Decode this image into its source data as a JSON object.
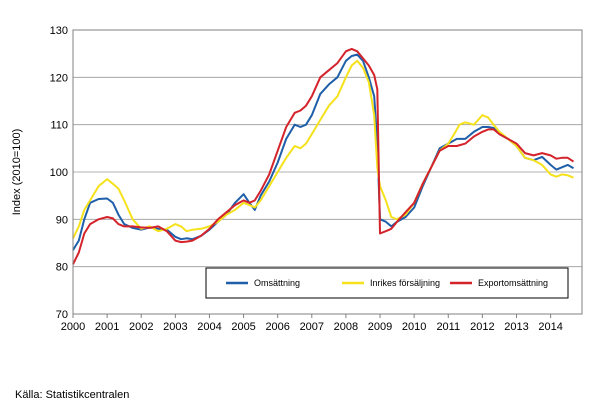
{
  "source_label": "Källa: Statistikcentralen",
  "chart_data": {
    "type": "line",
    "ylabel": "Index (2010=100)",
    "xlabel": "",
    "ylim": [
      70,
      130
    ],
    "yticks": [
      70,
      80,
      90,
      100,
      110,
      120,
      130
    ],
    "xlim": [
      2000.0,
      2014.92
    ],
    "xticks": [
      "2000",
      "2001",
      "2002",
      "2003",
      "2004",
      "2005",
      "2006",
      "2007",
      "2008",
      "2009",
      "2010",
      "2011",
      "2012",
      "2013",
      "2014"
    ],
    "grid": "horizontal",
    "legend_position": "bottom-right",
    "series": [
      {
        "name": "Omsättning",
        "color": "#1f5fa9",
        "points": [
          [
            2000.0,
            83.5
          ],
          [
            2000.17,
            85.5
          ],
          [
            2000.33,
            90
          ],
          [
            2000.5,
            93.5
          ],
          [
            2000.75,
            94.3
          ],
          [
            2001.0,
            94.4
          ],
          [
            2001.17,
            93.5
          ],
          [
            2001.33,
            91
          ],
          [
            2001.5,
            89
          ],
          [
            2001.75,
            88.2
          ],
          [
            2002.0,
            87.8
          ],
          [
            2002.25,
            88.3
          ],
          [
            2002.5,
            88.0
          ],
          [
            2002.75,
            87.8
          ],
          [
            2003.0,
            86.3
          ],
          [
            2003.17,
            85.8
          ],
          [
            2003.33,
            86
          ],
          [
            2003.5,
            85.8
          ],
          [
            2003.75,
            86.5
          ],
          [
            2004.0,
            87.8
          ],
          [
            2004.25,
            89.5
          ],
          [
            2004.5,
            91
          ],
          [
            2004.75,
            93.5
          ],
          [
            2005.0,
            95.3
          ],
          [
            2005.17,
            93.5
          ],
          [
            2005.33,
            92
          ],
          [
            2005.5,
            95
          ],
          [
            2005.75,
            98
          ],
          [
            2006.0,
            102
          ],
          [
            2006.25,
            107
          ],
          [
            2006.5,
            110
          ],
          [
            2006.67,
            109.5
          ],
          [
            2006.83,
            110
          ],
          [
            2007.0,
            112
          ],
          [
            2007.25,
            116.5
          ],
          [
            2007.5,
            118.5
          ],
          [
            2007.75,
            120
          ],
          [
            2008.0,
            123.5
          ],
          [
            2008.17,
            124.5
          ],
          [
            2008.33,
            124.8
          ],
          [
            2008.5,
            123.5
          ],
          [
            2008.67,
            120
          ],
          [
            2008.83,
            116
          ],
          [
            2008.92,
            106
          ],
          [
            2009.0,
            90
          ],
          [
            2009.17,
            89.5
          ],
          [
            2009.33,
            88.5
          ],
          [
            2009.5,
            89.5
          ],
          [
            2009.75,
            90.5
          ],
          [
            2010.0,
            92.5
          ],
          [
            2010.25,
            97
          ],
          [
            2010.5,
            101
          ],
          [
            2010.75,
            105
          ],
          [
            2011.0,
            106
          ],
          [
            2011.25,
            107
          ],
          [
            2011.5,
            107
          ],
          [
            2011.75,
            108.5
          ],
          [
            2012.0,
            109.5
          ],
          [
            2012.17,
            109.5
          ],
          [
            2012.33,
            109.3
          ],
          [
            2012.5,
            108
          ],
          [
            2012.75,
            107
          ],
          [
            2013.0,
            105.5
          ],
          [
            2013.25,
            103
          ],
          [
            2013.5,
            102.5
          ],
          [
            2013.75,
            103.2
          ],
          [
            2014.0,
            101.5
          ],
          [
            2014.17,
            100.5
          ],
          [
            2014.33,
            101
          ],
          [
            2014.5,
            101.5
          ],
          [
            2014.67,
            100.8
          ]
        ]
      },
      {
        "name": "Inrikes försäljning",
        "color": "#f5e11c",
        "points": [
          [
            2000.0,
            86
          ],
          [
            2000.17,
            88.5
          ],
          [
            2000.33,
            92
          ],
          [
            2000.5,
            94
          ],
          [
            2000.75,
            97
          ],
          [
            2001.0,
            98.5
          ],
          [
            2001.17,
            97.5
          ],
          [
            2001.33,
            96.5
          ],
          [
            2001.5,
            94
          ],
          [
            2001.75,
            90
          ],
          [
            2002.0,
            88
          ],
          [
            2002.25,
            88.5
          ],
          [
            2002.5,
            87.5
          ],
          [
            2002.75,
            88
          ],
          [
            2003.0,
            89
          ],
          [
            2003.17,
            88.5
          ],
          [
            2003.33,
            87.5
          ],
          [
            2003.5,
            87.8
          ],
          [
            2003.75,
            88
          ],
          [
            2004.0,
            88.5
          ],
          [
            2004.25,
            89.5
          ],
          [
            2004.5,
            91
          ],
          [
            2004.75,
            92
          ],
          [
            2005.0,
            93.5
          ],
          [
            2005.17,
            93
          ],
          [
            2005.33,
            92.5
          ],
          [
            2005.5,
            94
          ],
          [
            2005.75,
            97
          ],
          [
            2006.0,
            100
          ],
          [
            2006.25,
            103
          ],
          [
            2006.5,
            105.5
          ],
          [
            2006.67,
            105
          ],
          [
            2006.83,
            106
          ],
          [
            2007.0,
            108
          ],
          [
            2007.25,
            111
          ],
          [
            2007.5,
            114
          ],
          [
            2007.75,
            116
          ],
          [
            2008.0,
            120
          ],
          [
            2008.17,
            122.5
          ],
          [
            2008.33,
            123.5
          ],
          [
            2008.5,
            122
          ],
          [
            2008.67,
            119
          ],
          [
            2008.83,
            112
          ],
          [
            2008.92,
            101
          ],
          [
            2009.0,
            97
          ],
          [
            2009.17,
            94
          ],
          [
            2009.33,
            90.5
          ],
          [
            2009.5,
            90
          ],
          [
            2009.75,
            91
          ],
          [
            2010.0,
            93.5
          ],
          [
            2010.25,
            97.5
          ],
          [
            2010.5,
            101
          ],
          [
            2010.75,
            104.5
          ],
          [
            2011.0,
            106
          ],
          [
            2011.17,
            108
          ],
          [
            2011.33,
            110
          ],
          [
            2011.5,
            110.5
          ],
          [
            2011.75,
            110
          ],
          [
            2012.0,
            112
          ],
          [
            2012.17,
            111.5
          ],
          [
            2012.33,
            110
          ],
          [
            2012.5,
            108.5
          ],
          [
            2012.75,
            107
          ],
          [
            2013.0,
            105.5
          ],
          [
            2013.25,
            103
          ],
          [
            2013.5,
            102.5
          ],
          [
            2013.75,
            101.5
          ],
          [
            2014.0,
            99.5
          ],
          [
            2014.17,
            99
          ],
          [
            2014.33,
            99.5
          ],
          [
            2014.5,
            99.3
          ],
          [
            2014.67,
            98.8
          ]
        ]
      },
      {
        "name": "Exportomsättning",
        "color": "#d4232b",
        "points": [
          [
            2000.0,
            80.5
          ],
          [
            2000.17,
            83
          ],
          [
            2000.33,
            87
          ],
          [
            2000.5,
            89
          ],
          [
            2000.75,
            90
          ],
          [
            2001.0,
            90.5
          ],
          [
            2001.17,
            90.2
          ],
          [
            2001.33,
            89
          ],
          [
            2001.5,
            88.5
          ],
          [
            2001.75,
            88.5
          ],
          [
            2002.0,
            88.3
          ],
          [
            2002.25,
            88.2
          ],
          [
            2002.5,
            88.5
          ],
          [
            2002.75,
            87.5
          ],
          [
            2003.0,
            85.5
          ],
          [
            2003.17,
            85.2
          ],
          [
            2003.33,
            85.3
          ],
          [
            2003.5,
            85.5
          ],
          [
            2003.75,
            86.5
          ],
          [
            2004.0,
            88
          ],
          [
            2004.25,
            90
          ],
          [
            2004.5,
            91.5
          ],
          [
            2004.75,
            93
          ],
          [
            2005.0,
            94
          ],
          [
            2005.17,
            93.5
          ],
          [
            2005.33,
            94
          ],
          [
            2005.5,
            96
          ],
          [
            2005.75,
            99.5
          ],
          [
            2006.0,
            104.5
          ],
          [
            2006.25,
            109.5
          ],
          [
            2006.5,
            112.5
          ],
          [
            2006.67,
            113
          ],
          [
            2006.83,
            114
          ],
          [
            2007.0,
            116
          ],
          [
            2007.25,
            120
          ],
          [
            2007.5,
            121.5
          ],
          [
            2007.75,
            123
          ],
          [
            2008.0,
            125.5
          ],
          [
            2008.17,
            126
          ],
          [
            2008.33,
            125.5
          ],
          [
            2008.5,
            124
          ],
          [
            2008.67,
            122.5
          ],
          [
            2008.83,
            120.5
          ],
          [
            2008.92,
            117.5
          ],
          [
            2009.0,
            87
          ],
          [
            2009.17,
            87.5
          ],
          [
            2009.33,
            88
          ],
          [
            2009.5,
            89.5
          ],
          [
            2009.75,
            91.5
          ],
          [
            2010.0,
            93.5
          ],
          [
            2010.25,
            97.5
          ],
          [
            2010.5,
            101
          ],
          [
            2010.75,
            104.5
          ],
          [
            2011.0,
            105.5
          ],
          [
            2011.25,
            105.5
          ],
          [
            2011.5,
            106
          ],
          [
            2011.75,
            107.5
          ],
          [
            2012.0,
            108.5
          ],
          [
            2012.17,
            109
          ],
          [
            2012.33,
            109
          ],
          [
            2012.5,
            108
          ],
          [
            2012.75,
            107
          ],
          [
            2013.0,
            106
          ],
          [
            2013.25,
            104
          ],
          [
            2013.5,
            103.5
          ],
          [
            2013.75,
            104
          ],
          [
            2014.0,
            103.5
          ],
          [
            2014.17,
            102.8
          ],
          [
            2014.33,
            103
          ],
          [
            2014.5,
            103
          ],
          [
            2014.67,
            102.2
          ]
        ]
      }
    ]
  }
}
